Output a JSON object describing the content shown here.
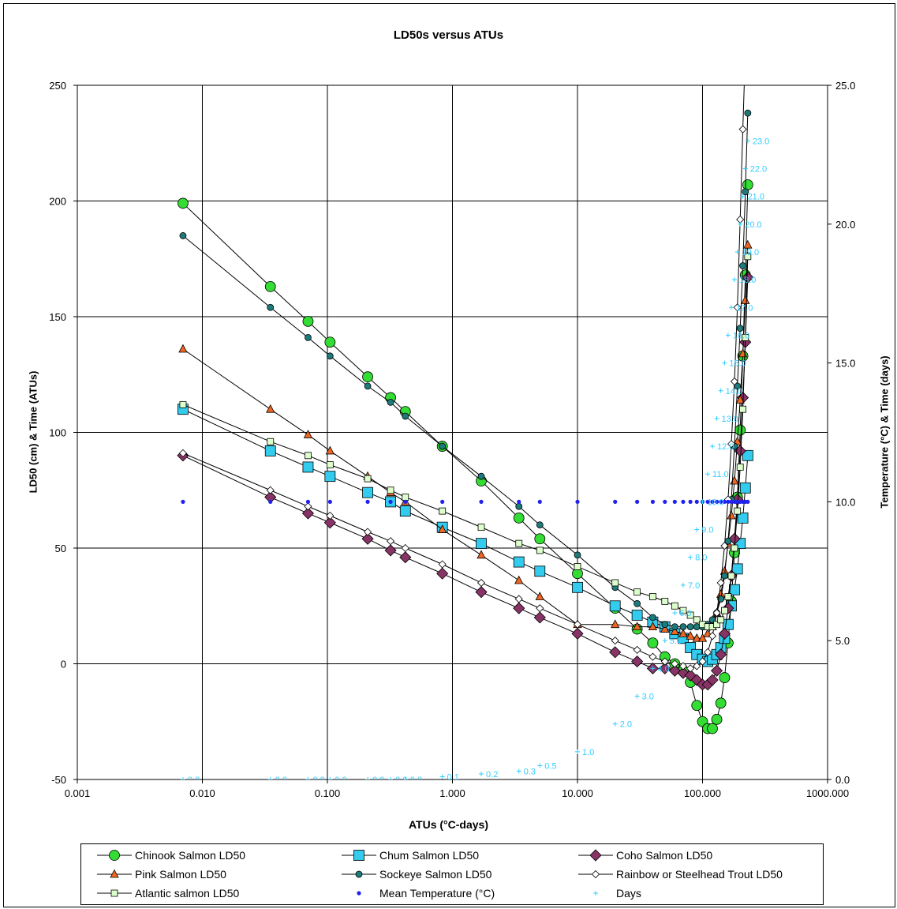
{
  "chart_data": {
    "type": "scatter",
    "title": "LD50s versus ATUs",
    "xlabel": "ATUs (°C-days)",
    "ylabel_left": "LD50 (cm) & Time (ATUs)",
    "ylabel_right": "Temperature (°C) & Time (days)",
    "x_scale": "log",
    "xlim": [
      0.001,
      1000
    ],
    "ylim_left": [
      -50,
      250
    ],
    "ylim_right": [
      0,
      25
    ],
    "x_ticks": [
      "0.001",
      "0.010",
      "0.100",
      "1.000",
      "10.000",
      "100.000",
      "1000.000"
    ],
    "y_left_ticks": [
      "-50",
      "0",
      "50",
      "100",
      "150",
      "200",
      "250"
    ],
    "y_right_ticks": [
      "0.0",
      "5.0",
      "10.0",
      "15.0",
      "20.0",
      "25.0"
    ],
    "grid": true,
    "legend_position": "bottom",
    "series": [
      {
        "name": "Chinook Salmon LD50",
        "marker": "circle",
        "color": "#33dd33",
        "axis": "left",
        "x": [
          0.007,
          0.035,
          0.07,
          0.105,
          0.21,
          0.32,
          0.42,
          0.83,
          1.7,
          3.4,
          5.0,
          10,
          20,
          30,
          40,
          50,
          60,
          70,
          80,
          90,
          100,
          110,
          120,
          130,
          140,
          150,
          160,
          170,
          180,
          190,
          200,
          210,
          220,
          230
        ],
        "y": [
          199,
          163,
          148,
          139,
          124,
          115,
          109,
          94,
          79,
          63,
          54,
          39,
          24,
          15,
          9,
          3,
          0,
          -3,
          -8,
          -18,
          -25,
          -28,
          -28,
          -24,
          -17,
          -6,
          9,
          27,
          48,
          72,
          101,
          133,
          168,
          207
        ]
      },
      {
        "name": "Chum Salmon LD50",
        "marker": "square",
        "color": "#33ccee",
        "axis": "left",
        "x": [
          0.007,
          0.035,
          0.07,
          0.105,
          0.21,
          0.32,
          0.42,
          0.83,
          1.7,
          3.4,
          5.0,
          10,
          20,
          30,
          40,
          50,
          60,
          70,
          80,
          90,
          100,
          110,
          120,
          130,
          140,
          150,
          160,
          170,
          180,
          190,
          200,
          210,
          220,
          230
        ],
        "y": [
          110,
          92,
          85,
          81,
          74,
          70,
          66,
          59,
          52,
          44,
          40,
          33,
          25,
          21,
          18,
          16,
          13,
          11,
          7,
          4,
          2,
          1,
          2,
          4,
          7,
          11,
          17,
          25,
          32,
          41,
          52,
          63,
          76,
          90
        ]
      },
      {
        "name": "Coho Salmon LD50",
        "marker": "diamond",
        "color": "#883366",
        "axis": "left",
        "x": [
          0.007,
          0.035,
          0.07,
          0.105,
          0.21,
          0.32,
          0.42,
          0.83,
          1.7,
          3.4,
          5.0,
          10,
          20,
          30,
          40,
          50,
          60,
          70,
          80,
          90,
          100,
          110,
          120,
          130,
          140,
          150,
          160,
          170,
          180,
          190,
          200,
          210,
          220,
          230
        ],
        "y": [
          90,
          72,
          65,
          61,
          54,
          49,
          46,
          39,
          31,
          24,
          20,
          13,
          5,
          1,
          -2,
          -2,
          -3,
          -4,
          -5,
          -7,
          -9,
          -9,
          -7,
          -3,
          4,
          13,
          24,
          38,
          54,
          71,
          92,
          115,
          139,
          167
        ]
      },
      {
        "name": "Pink Salmon LD50",
        "marker": "triangle",
        "color": "#ee6622",
        "axis": "left",
        "x": [
          0.007,
          0.035,
          0.07,
          0.105,
          0.21,
          0.32,
          0.42,
          0.83,
          1.7,
          3.4,
          5.0,
          10,
          20,
          30,
          40,
          50,
          60,
          70,
          80,
          90,
          100,
          110,
          120,
          130,
          140,
          150,
          160,
          170,
          180,
          190,
          200,
          210,
          220,
          230
        ],
        "y": [
          136,
          110,
          99,
          92,
          81,
          74,
          70,
          58,
          47,
          36,
          29,
          17,
          17,
          16,
          16,
          15,
          14,
          13,
          12,
          11,
          11,
          13,
          16,
          22,
          30,
          40,
          52,
          64,
          79,
          96,
          114,
          134,
          157,
          181
        ]
      },
      {
        "name": "Sockeye Salmon LD50",
        "marker": "smallcircle",
        "color": "#1e7b7b",
        "axis": "left",
        "x": [
          0.007,
          0.035,
          0.07,
          0.105,
          0.21,
          0.32,
          0.42,
          0.83,
          1.7,
          3.4,
          5.0,
          10,
          20,
          30,
          40,
          50,
          60,
          70,
          80,
          90,
          100,
          110,
          120,
          130,
          140,
          150,
          160,
          170,
          180,
          190,
          200,
          210,
          220,
          230
        ],
        "y": [
          185,
          154,
          141,
          133,
          120,
          113,
          107,
          94,
          81,
          68,
          60,
          47,
          33,
          26,
          20,
          17,
          16,
          16,
          16,
          16,
          16,
          17,
          19,
          22,
          28,
          38,
          53,
          71,
          94,
          120,
          145,
          172,
          204,
          238
        ]
      },
      {
        "name": "Rainbow or Steelhead Trout LD50",
        "marker": "smalldiamond",
        "color": "#ffffff",
        "axis": "left",
        "x": [
          0.007,
          0.035,
          0.07,
          0.105,
          0.21,
          0.32,
          0.42,
          0.83,
          1.7,
          3.4,
          5.0,
          10,
          20,
          30,
          40,
          50,
          60,
          70,
          80,
          90,
          100,
          110,
          120,
          130,
          140,
          150,
          160,
          170,
          180,
          190,
          200,
          210,
          220
        ],
        "y": [
          91,
          75,
          68,
          64,
          57,
          53,
          50,
          43,
          35,
          28,
          24,
          17,
          10,
          6,
          3,
          1,
          0,
          -1,
          -2,
          -1,
          1,
          5,
          12,
          22,
          35,
          51,
          71,
          95,
          122,
          154,
          192,
          231,
          265
        ]
      },
      {
        "name": "Atlantic salmon LD50",
        "marker": "smallsquare",
        "color": "#ddffcc",
        "axis": "left",
        "x": [
          0.007,
          0.035,
          0.07,
          0.105,
          0.21,
          0.32,
          0.42,
          0.83,
          1.7,
          3.4,
          5.0,
          10,
          20,
          30,
          40,
          50,
          60,
          70,
          80,
          90,
          100,
          110,
          120,
          130,
          140,
          150,
          160,
          170,
          180,
          190,
          200,
          210,
          220,
          230
        ],
        "y": [
          112,
          96,
          90,
          86,
          80,
          75,
          72,
          66,
          59,
          52,
          49,
          42,
          35,
          31,
          29,
          27,
          25,
          23,
          21,
          19,
          17,
          16,
          16,
          17,
          19,
          23,
          29,
          38,
          50,
          66,
          85,
          110,
          141,
          176
        ]
      },
      {
        "name": "Mean Temperature (°C)",
        "marker": "dot",
        "color": "#2222ee",
        "axis": "right",
        "x": [
          0.007,
          0.035,
          0.07,
          0.105,
          0.21,
          0.32,
          0.42,
          0.83,
          1.7,
          3.4,
          5.0,
          10,
          20,
          30,
          40,
          50,
          60,
          70,
          80,
          90,
          100,
          110,
          120,
          130,
          140,
          150,
          160,
          170,
          180,
          190,
          200,
          210,
          220,
          230
        ],
        "y": [
          10,
          10,
          10,
          10,
          10,
          10,
          10,
          10,
          10,
          10,
          10,
          10,
          10,
          10,
          10,
          10,
          10,
          10,
          10,
          10,
          10,
          10,
          10,
          10,
          10,
          10,
          10,
          10,
          10,
          10,
          10,
          10,
          10,
          10
        ]
      },
      {
        "name": "Days",
        "marker": "plus",
        "color": "#33ccff",
        "axis": "right",
        "x": [
          0.007,
          0.035,
          0.07,
          0.105,
          0.21,
          0.32,
          0.42,
          0.83,
          1.7,
          3.4,
          5.0,
          10,
          20,
          30,
          40,
          50,
          60,
          70,
          80,
          90,
          100,
          110,
          120,
          130,
          140,
          150,
          160,
          170,
          180,
          190,
          200,
          210,
          220,
          230
        ],
        "y": [
          0.0,
          0.0,
          0.0,
          0.0,
          0.0,
          0.0,
          0.0,
          0.1,
          0.2,
          0.3,
          0.5,
          1.0,
          2.0,
          3.0,
          4.0,
          5.0,
          6.0,
          7.0,
          8.0,
          9.0,
          10.0,
          11.0,
          12.0,
          13.0,
          14.0,
          15.0,
          16.0,
          17.0,
          18.0,
          19.0,
          20.0,
          21.0,
          22.0,
          23.0
        ],
        "labels": [
          "0.0",
          "0.0",
          "0.0",
          "0.0",
          "0.0",
          "0.0",
          "0.0",
          "0.1",
          "0.2",
          "0.3",
          "0.5",
          "1.0",
          "2.0",
          "3.0",
          "4.0",
          "5.0",
          "6.0",
          "7.0",
          "8.0",
          "9.0",
          "10.0",
          "11.0",
          "12.0",
          "13.0",
          "14.0",
          "15.0",
          "16.0",
          "17.0",
          "18.0",
          "19.0",
          "20.0",
          "21.0",
          "22.0",
          "23.0"
        ]
      }
    ]
  }
}
